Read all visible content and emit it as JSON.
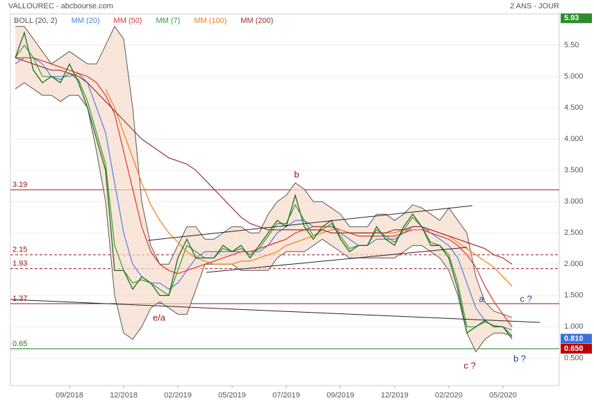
{
  "chart_data": {
    "type": "line",
    "title": "VALLOUREC - abcbourse.com",
    "period": "2 ANS - JOUR",
    "categories": [
      null,
      null,
      null,
      null,
      null,
      null,
      "09/2018",
      null,
      null,
      null,
      null,
      null,
      "12/2018",
      null,
      null,
      null,
      null,
      null,
      "02/2019",
      null,
      null,
      null,
      null,
      null,
      "05/2019",
      null,
      null,
      null,
      null,
      null,
      "07/2019",
      null,
      null,
      null,
      null,
      null,
      "09/2019",
      null,
      null,
      null,
      null,
      null,
      "12/2019",
      null,
      null,
      null,
      null,
      null,
      "02/2020",
      null,
      null,
      null,
      null,
      null,
      "05/2020",
      null
    ],
    "values": [
      5.3,
      5.7,
      5.1,
      4.9,
      5.0,
      4.9,
      5.2,
      4.9,
      4.5,
      4.0,
      3.5,
      1.9,
      1.9,
      1.6,
      1.8,
      1.7,
      1.5,
      1.5,
      2.1,
      2.4,
      2.1,
      2.1,
      2.1,
      2.3,
      2.2,
      2.3,
      2.1,
      2.3,
      2.5,
      2.7,
      2.6,
      3.1,
      2.6,
      2.4,
      2.6,
      2.7,
      2.4,
      2.2,
      2.3,
      2.3,
      2.6,
      2.4,
      2.3,
      2.6,
      2.8,
      2.6,
      2.3,
      2.3,
      2.1,
      1.6,
      0.9,
      1.0,
      1.1,
      1.0,
      1.0,
      0.81
    ],
    "color": "#2f6b2f",
    "series": [
      {
        "name": "BOLL (20, 2)",
        "color": "#555555",
        "fill": "#f6dccb",
        "upper": [
          5.8,
          5.8,
          5.6,
          5.4,
          5.2,
          5.3,
          5.4,
          5.3,
          5.2,
          5.2,
          5.5,
          5.8,
          5.6,
          4.5,
          3.0,
          2.3,
          2.0,
          2.0,
          2.3,
          2.6,
          2.6,
          2.4,
          2.4,
          2.5,
          2.6,
          2.6,
          2.5,
          2.5,
          2.8,
          3.0,
          3.1,
          3.3,
          3.2,
          3.0,
          3.0,
          2.9,
          2.8,
          2.6,
          2.6,
          2.6,
          2.8,
          2.8,
          2.7,
          2.8,
          2.95,
          2.9,
          2.8,
          2.7,
          2.9,
          2.7,
          2.5,
          1.8,
          1.4,
          1.25,
          1.2,
          1.15
        ],
        "lower": [
          4.8,
          4.9,
          4.8,
          4.7,
          4.7,
          4.6,
          4.7,
          4.7,
          4.5,
          3.8,
          3.0,
          1.5,
          0.9,
          0.8,
          1.0,
          1.3,
          1.4,
          1.3,
          1.2,
          1.2,
          1.6,
          2.0,
          2.0,
          2.0,
          2.0,
          1.9,
          1.9,
          1.9,
          1.9,
          2.1,
          2.2,
          2.2,
          2.2,
          2.3,
          2.4,
          2.3,
          2.2,
          2.1,
          2.1,
          2.1,
          2.1,
          2.1,
          2.1,
          2.2,
          2.3,
          2.3,
          2.2,
          2.1,
          1.9,
          1.5,
          0.9,
          0.6,
          0.8,
          0.9,
          0.9,
          0.85
        ]
      },
      {
        "name": "MM (20)",
        "color": "#4a7fe0",
        "values": [
          5.2,
          5.3,
          5.3,
          5.2,
          5.0,
          5.0,
          5.0,
          5.05,
          4.9,
          4.5,
          4.1,
          3.3,
          2.5,
          2.0,
          1.8,
          1.7,
          1.7,
          1.6,
          1.7,
          1.9,
          2.1,
          2.2,
          2.2,
          2.2,
          2.2,
          2.2,
          2.2,
          2.2,
          2.3,
          2.5,
          2.6,
          2.7,
          2.7,
          2.6,
          2.6,
          2.6,
          2.5,
          2.4,
          2.3,
          2.3,
          2.4,
          2.4,
          2.4,
          2.5,
          2.6,
          2.6,
          2.5,
          2.4,
          2.3,
          2.1,
          1.7,
          1.3,
          1.1,
          1.0,
          1.0,
          0.95
        ]
      },
      {
        "name": "MM (50)",
        "color": "#e03030",
        "values": [
          5.3,
          5.3,
          5.3,
          5.25,
          5.2,
          5.15,
          5.1,
          5.05,
          5.0,
          4.9,
          4.7,
          4.4,
          3.8,
          3.2,
          2.6,
          2.2,
          2.0,
          1.9,
          1.85,
          1.9,
          1.95,
          2.0,
          2.05,
          2.1,
          2.15,
          2.2,
          2.2,
          2.25,
          2.3,
          2.35,
          2.4,
          2.5,
          2.55,
          2.6,
          2.6,
          2.6,
          2.55,
          2.5,
          2.45,
          2.45,
          2.45,
          2.45,
          2.45,
          2.5,
          2.55,
          2.55,
          2.5,
          2.45,
          2.4,
          2.3,
          2.15,
          1.95,
          1.65,
          1.4,
          1.2,
          1.0
        ]
      },
      {
        "name": "MM (7)",
        "color": "#2ca02c",
        "values": [
          5.3,
          5.5,
          5.3,
          5.0,
          5.0,
          4.95,
          5.05,
          4.95,
          4.6,
          4.1,
          3.6,
          2.3,
          1.9,
          1.7,
          1.75,
          1.7,
          1.6,
          1.5,
          1.9,
          2.3,
          2.2,
          2.1,
          2.1,
          2.25,
          2.2,
          2.25,
          2.15,
          2.25,
          2.45,
          2.65,
          2.65,
          2.95,
          2.7,
          2.45,
          2.55,
          2.65,
          2.45,
          2.25,
          2.3,
          2.3,
          2.55,
          2.45,
          2.35,
          2.55,
          2.75,
          2.6,
          2.35,
          2.3,
          2.15,
          1.7,
          1.0,
          1.0,
          1.08,
          1.02,
          1.0,
          0.86
        ]
      },
      {
        "name": "MM (100)",
        "color": "#f07c1c",
        "values": [
          null,
          null,
          null,
          null,
          null,
          null,
          null,
          null,
          null,
          null,
          4.8,
          4.5,
          4.1,
          3.7,
          3.3,
          2.95,
          2.7,
          2.5,
          2.35,
          2.2,
          2.1,
          2.05,
          2.0,
          2.0,
          2.0,
          2.05,
          2.05,
          2.1,
          2.15,
          2.2,
          2.3,
          2.35,
          2.4,
          2.45,
          2.5,
          2.55,
          2.55,
          2.5,
          2.5,
          2.5,
          2.5,
          2.5,
          2.5,
          2.55,
          2.55,
          2.55,
          2.55,
          2.5,
          2.45,
          2.35,
          2.25,
          2.15,
          2.05,
          1.95,
          1.8,
          1.65
        ]
      },
      {
        "name": "MM (200)",
        "color": "#9a3030",
        "values": [
          5.3,
          5.25,
          5.2,
          5.15,
          5.1,
          5.1,
          5.05,
          5.0,
          4.9,
          4.75,
          4.6,
          4.45,
          4.3,
          4.15,
          4.0,
          3.9,
          3.8,
          3.7,
          3.65,
          3.6,
          3.5,
          3.35,
          3.2,
          3.05,
          2.9,
          2.75,
          2.65,
          2.6,
          2.55,
          2.55,
          2.55,
          2.55,
          2.55,
          2.55,
          2.55,
          2.5,
          2.5,
          2.5,
          2.5,
          2.5,
          2.5,
          2.5,
          2.55,
          2.55,
          2.6,
          2.6,
          2.55,
          2.5,
          2.45,
          2.4,
          2.35,
          2.3,
          2.25,
          2.15,
          2.1,
          2.0
        ]
      }
    ],
    "ylim": [
      0.06,
      6.0
    ],
    "yticks": [
      {
        "value": 5.5,
        "label": "5.50"
      },
      {
        "value": 5,
        "label": "5.000"
      },
      {
        "value": 4.5,
        "label": "4.500"
      },
      {
        "value": 4,
        "label": "4.000"
      },
      {
        "value": 3.5,
        "label": "3.500"
      },
      {
        "value": 3,
        "label": "3.000"
      },
      {
        "value": 2.5,
        "label": "2.500"
      },
      {
        "value": 2,
        "label": "2.000"
      },
      {
        "value": 1.5,
        "label": "1.500"
      },
      {
        "value": 1,
        "label": "1.000"
      },
      {
        "value": 0.5,
        "label": "0.500"
      }
    ],
    "grid": true,
    "levels": [
      {
        "value": 3.19,
        "color": "#a01010",
        "dashed": false
      },
      {
        "value": 2.15,
        "color": "#a01010",
        "dashed": true
      },
      {
        "value": 1.93,
        "color": "#a01010",
        "dashed": true
      },
      {
        "value": 1.37,
        "color": "#a01010",
        "dashed": false
      },
      {
        "value": 0.65,
        "color": "#1a7a1a",
        "dashed": false
      }
    ],
    "price_tags": [
      {
        "value": 5.93,
        "color": "#2e8b2e"
      },
      {
        "value": 0.81,
        "label": "0.810",
        "color": "#3b6fd8"
      },
      {
        "value": 0.65,
        "label": "0.650",
        "color": "#c00000"
      }
    ],
    "annotations": [
      {
        "text": "b",
        "color": "#a01010"
      },
      {
        "text": "e/a",
        "color": "#a01010"
      },
      {
        "text": "a",
        "color": "#1f3f9a"
      },
      {
        "text": "c ?",
        "color": "#1f3f9a"
      },
      {
        "text": "c ?",
        "color": "#a01010"
      },
      {
        "text": "b ?",
        "color": "#1f3f9a"
      }
    ]
  }
}
